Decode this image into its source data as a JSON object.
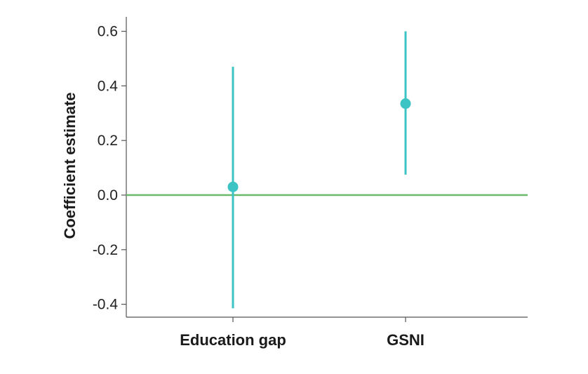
{
  "chart_data": {
    "type": "scatter",
    "title": "",
    "xlabel": "",
    "ylabel": "Coefficient estimate",
    "ylim": [
      -0.45,
      0.65
    ],
    "yticks": [
      0.6,
      0.4,
      0.2,
      0.0,
      -0.2,
      -0.4
    ],
    "ytick_labels": [
      "0.6",
      "0.4",
      "0.2",
      "0.0",
      "-0.2",
      "-0.4"
    ],
    "categories": [
      "Education gap",
      "GSNI"
    ],
    "series": [
      {
        "estimates": [
          0.03,
          0.335
        ],
        "ci_low": [
          -0.415,
          0.075
        ],
        "ci_high": [
          0.47,
          0.6
        ],
        "color": "#3cc3c3"
      }
    ],
    "reference_line": {
      "y": 0.0,
      "color": "#6cb96c"
    },
    "grid": false,
    "legend": "none"
  }
}
